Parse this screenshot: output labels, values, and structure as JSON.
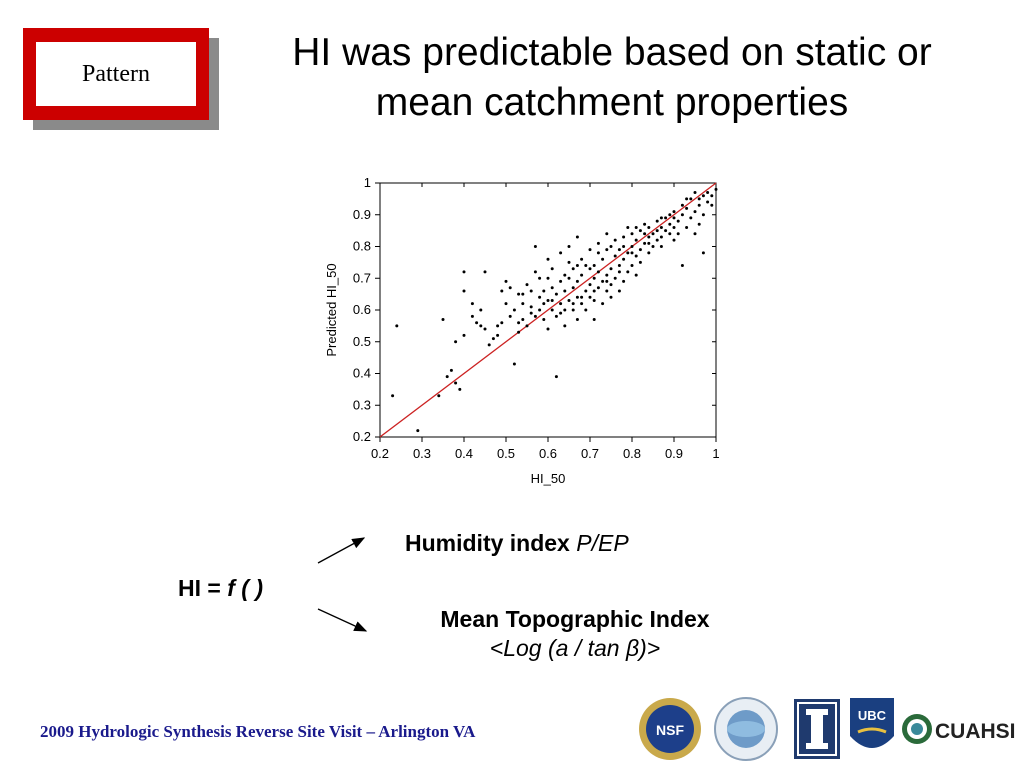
{
  "badge": {
    "label": "Pattern"
  },
  "slide": {
    "title_line1": "HI was predictable based on static or",
    "title_line2": "mean catchment properties"
  },
  "formula": {
    "lhs": "HI = ",
    "func": "f (  )",
    "humidity_bold": "Humidity index ",
    "humidity_italic": "P/EP",
    "topo_bold": "Mean Topographic Index",
    "topo_italic": "<Log (a / tan β)>"
  },
  "footer": {
    "text": "2009 Hydrologic Synthesis Reverse Site Visit – Arlington VA"
  },
  "logos": [
    "nsf-logo",
    "predictability-logo",
    "illinois-logo",
    "ubc-logo",
    "cuahsi-logo"
  ],
  "logo_text": {
    "cuahsi": "CUAHSI",
    "ubc": "UBC",
    "nsf": "NSF"
  },
  "colors": {
    "badge_red": "#cc0000",
    "fit_line": "#cc2222",
    "footer_blue": "#1a1a8c"
  },
  "chart_data": {
    "type": "scatter",
    "title": "",
    "xlabel": "HI_50",
    "ylabel": "Predicted HI_50",
    "xlim": [
      0.2,
      1.0
    ],
    "ylim": [
      0.2,
      1.0
    ],
    "xticks": [
      "0.2",
      "0.3",
      "0.4",
      "0.5",
      "0.6",
      "0.7",
      "0.8",
      "0.9",
      "1"
    ],
    "yticks": [
      "0.2",
      "0.3",
      "0.4",
      "0.5",
      "0.6",
      "0.7",
      "0.8",
      "0.9",
      "1"
    ],
    "grid": false,
    "reference_line": {
      "x": [
        0.2,
        1.0
      ],
      "y": [
        0.2,
        1.0
      ]
    },
    "points": [
      [
        0.23,
        0.33
      ],
      [
        0.24,
        0.55
      ],
      [
        0.29,
        0.22
      ],
      [
        0.34,
        0.33
      ],
      [
        0.35,
        0.57
      ],
      [
        0.36,
        0.39
      ],
      [
        0.37,
        0.41
      ],
      [
        0.38,
        0.37
      ],
      [
        0.39,
        0.35
      ],
      [
        0.38,
        0.5
      ],
      [
        0.4,
        0.52
      ],
      [
        0.4,
        0.66
      ],
      [
        0.4,
        0.72
      ],
      [
        0.42,
        0.58
      ],
      [
        0.42,
        0.62
      ],
      [
        0.43,
        0.56
      ],
      [
        0.44,
        0.55
      ],
      [
        0.44,
        0.6
      ],
      [
        0.45,
        0.54
      ],
      [
        0.45,
        0.72
      ],
      [
        0.46,
        0.49
      ],
      [
        0.47,
        0.51
      ],
      [
        0.48,
        0.55
      ],
      [
        0.48,
        0.52
      ],
      [
        0.49,
        0.66
      ],
      [
        0.49,
        0.56
      ],
      [
        0.5,
        0.69
      ],
      [
        0.5,
        0.62
      ],
      [
        0.51,
        0.67
      ],
      [
        0.51,
        0.58
      ],
      [
        0.52,
        0.43
      ],
      [
        0.52,
        0.6
      ],
      [
        0.53,
        0.65
      ],
      [
        0.53,
        0.56
      ],
      [
        0.53,
        0.53
      ],
      [
        0.54,
        0.62
      ],
      [
        0.54,
        0.65
      ],
      [
        0.55,
        0.55
      ],
      [
        0.55,
        0.68
      ],
      [
        0.56,
        0.61
      ],
      [
        0.56,
        0.66
      ],
      [
        0.57,
        0.58
      ],
      [
        0.57,
        0.72
      ],
      [
        0.57,
        0.8
      ],
      [
        0.58,
        0.64
      ],
      [
        0.58,
        0.7
      ],
      [
        0.58,
        0.6
      ],
      [
        0.59,
        0.66
      ],
      [
        0.59,
        0.57
      ],
      [
        0.6,
        0.63
      ],
      [
        0.6,
        0.7
      ],
      [
        0.6,
        0.54
      ],
      [
        0.6,
        0.76
      ],
      [
        0.61,
        0.6
      ],
      [
        0.61,
        0.67
      ],
      [
        0.61,
        0.73
      ],
      [
        0.62,
        0.65
      ],
      [
        0.62,
        0.58
      ],
      [
        0.62,
        0.39
      ],
      [
        0.63,
        0.69
      ],
      [
        0.63,
        0.62
      ],
      [
        0.63,
        0.78
      ],
      [
        0.64,
        0.6
      ],
      [
        0.64,
        0.66
      ],
      [
        0.64,
        0.71
      ],
      [
        0.64,
        0.55
      ],
      [
        0.65,
        0.63
      ],
      [
        0.65,
        0.7
      ],
      [
        0.65,
        0.75
      ],
      [
        0.65,
        0.8
      ],
      [
        0.66,
        0.6
      ],
      [
        0.66,
        0.67
      ],
      [
        0.66,
        0.73
      ],
      [
        0.67,
        0.57
      ],
      [
        0.67,
        0.64
      ],
      [
        0.67,
        0.69
      ],
      [
        0.67,
        0.83
      ],
      [
        0.68,
        0.62
      ],
      [
        0.68,
        0.71
      ],
      [
        0.68,
        0.76
      ],
      [
        0.69,
        0.6
      ],
      [
        0.69,
        0.66
      ],
      [
        0.69,
        0.74
      ],
      [
        0.7,
        0.64
      ],
      [
        0.7,
        0.68
      ],
      [
        0.7,
        0.79
      ],
      [
        0.71,
        0.63
      ],
      [
        0.71,
        0.7
      ],
      [
        0.71,
        0.74
      ],
      [
        0.71,
        0.57
      ],
      [
        0.72,
        0.67
      ],
      [
        0.72,
        0.72
      ],
      [
        0.72,
        0.81
      ],
      [
        0.73,
        0.62
      ],
      [
        0.73,
        0.69
      ],
      [
        0.73,
        0.76
      ],
      [
        0.74,
        0.66
      ],
      [
        0.74,
        0.71
      ],
      [
        0.74,
        0.79
      ],
      [
        0.74,
        0.84
      ],
      [
        0.75,
        0.64
      ],
      [
        0.75,
        0.73
      ],
      [
        0.75,
        0.68
      ],
      [
        0.76,
        0.7
      ],
      [
        0.76,
        0.77
      ],
      [
        0.76,
        0.82
      ],
      [
        0.77,
        0.66
      ],
      [
        0.77,
        0.74
      ],
      [
        0.77,
        0.79
      ],
      [
        0.78,
        0.69
      ],
      [
        0.78,
        0.76
      ],
      [
        0.78,
        0.83
      ],
      [
        0.79,
        0.72
      ],
      [
        0.79,
        0.78
      ],
      [
        0.79,
        0.86
      ],
      [
        0.8,
        0.74
      ],
      [
        0.8,
        0.8
      ],
      [
        0.8,
        0.84
      ],
      [
        0.81,
        0.71
      ],
      [
        0.81,
        0.77
      ],
      [
        0.81,
        0.82
      ],
      [
        0.82,
        0.79
      ],
      [
        0.82,
        0.85
      ],
      [
        0.82,
        0.75
      ],
      [
        0.83,
        0.81
      ],
      [
        0.83,
        0.87
      ],
      [
        0.84,
        0.78
      ],
      [
        0.84,
        0.83
      ],
      [
        0.84,
        0.86
      ],
      [
        0.85,
        0.8
      ],
      [
        0.85,
        0.84
      ],
      [
        0.86,
        0.82
      ],
      [
        0.86,
        0.88
      ],
      [
        0.87,
        0.83
      ],
      [
        0.87,
        0.86
      ],
      [
        0.87,
        0.8
      ],
      [
        0.88,
        0.85
      ],
      [
        0.88,
        0.89
      ],
      [
        0.89,
        0.84
      ],
      [
        0.89,
        0.9
      ],
      [
        0.9,
        0.86
      ],
      [
        0.9,
        0.82
      ],
      [
        0.9,
        0.91
      ],
      [
        0.91,
        0.88
      ],
      [
        0.91,
        0.84
      ],
      [
        0.92,
        0.9
      ],
      [
        0.92,
        0.74
      ],
      [
        0.93,
        0.86
      ],
      [
        0.93,
        0.92
      ],
      [
        0.94,
        0.89
      ],
      [
        0.94,
        0.95
      ],
      [
        0.95,
        0.84
      ],
      [
        0.95,
        0.91
      ],
      [
        0.96,
        0.93
      ],
      [
        0.96,
        0.87
      ],
      [
        0.97,
        0.96
      ],
      [
        0.97,
        0.78
      ],
      [
        0.97,
        0.9
      ],
      [
        0.98,
        0.94
      ],
      [
        0.98,
        0.97
      ],
      [
        0.99,
        0.93
      ],
      [
        0.99,
        0.96
      ],
      [
        1.0,
        0.98
      ],
      [
        0.95,
        0.97
      ],
      [
        0.93,
        0.95
      ],
      [
        0.92,
        0.93
      ],
      [
        0.89,
        0.87
      ],
      [
        0.86,
        0.85
      ],
      [
        0.83,
        0.84
      ],
      [
        0.8,
        0.78
      ],
      [
        0.77,
        0.72
      ],
      [
        0.74,
        0.69
      ],
      [
        0.71,
        0.66
      ],
      [
        0.68,
        0.64
      ],
      [
        0.66,
        0.62
      ],
      [
        0.63,
        0.59
      ],
      [
        0.61,
        0.63
      ],
      [
        0.59,
        0.62
      ],
      [
        0.56,
        0.59
      ],
      [
        0.54,
        0.57
      ],
      [
        0.67,
        0.74
      ],
      [
        0.7,
        0.73
      ],
      [
        0.72,
        0.78
      ],
      [
        0.75,
        0.8
      ],
      [
        0.78,
        0.8
      ],
      [
        0.81,
        0.86
      ],
      [
        0.84,
        0.81
      ],
      [
        0.87,
        0.89
      ],
      [
        0.9,
        0.89
      ],
      [
        0.96,
        0.95
      ]
    ]
  }
}
